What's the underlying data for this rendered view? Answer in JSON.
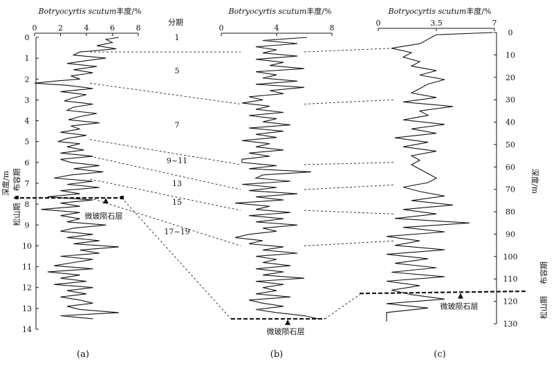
{
  "chart_data": [
    {
      "panel": "(a)",
      "type": "line",
      "title": "Botryocyrtis scutum丰度/%",
      "xlim": [
        0,
        8
      ],
      "xticks": [
        "0",
        "2",
        "4",
        "6",
        "8"
      ],
      "ylabel": "深度/m",
      "ylim": [
        0,
        14
      ],
      "yticks": [
        "0",
        "1",
        "2",
        "3",
        "4",
        "5",
        "6",
        "7",
        "8",
        "9",
        "10",
        "11",
        "12",
        "13",
        "14"
      ],
      "boundary_depth": 7.7,
      "boundary_label": "微玻陨石层",
      "chron_upper": "布容期",
      "chron_lower": "松山期",
      "series": [
        {
          "depth": [
            0,
            0.1,
            0.25,
            0.4,
            0.55,
            0.7,
            0.85,
            1.0,
            1.1,
            1.25,
            1.4,
            1.55,
            1.7,
            1.85,
            2.0,
            2.1,
            2.2,
            2.3,
            2.45,
            2.6,
            2.75,
            2.9,
            3.05,
            3.2,
            3.35,
            3.5,
            3.65,
            3.8,
            3.95,
            4.1,
            4.25,
            4.4,
            4.55,
            4.7,
            4.85,
            5.0,
            5.1,
            5.25,
            5.4,
            5.55,
            5.7,
            5.85,
            6.0,
            6.15,
            6.3,
            6.45,
            6.6,
            6.75,
            6.9,
            7.05,
            7.2,
            7.35,
            7.5,
            7.65,
            7.8,
            7.95,
            8.1,
            8.25,
            8.4,
            8.55,
            8.7,
            8.85,
            9.0,
            9.15,
            9.3,
            9.45,
            9.6,
            9.75,
            9.9,
            10.05,
            10.2,
            10.35,
            10.5,
            10.65,
            10.8,
            10.95,
            11.1,
            11.25,
            11.4,
            11.55,
            11.7,
            11.85,
            12.0,
            12.15,
            12.3,
            12.45,
            12.6,
            12.75,
            12.9,
            13.05,
            13.2,
            13.35,
            13.5
          ],
          "abundance": [
            6.5,
            5.5,
            6.0,
            4.8,
            6.3,
            3.5,
            3.0,
            5.5,
            4.2,
            2.5,
            4.8,
            3.0,
            4.5,
            2.8,
            3.5,
            1.5,
            0,
            2.5,
            4.5,
            2.0,
            4.0,
            3.0,
            2.3,
            4.5,
            3.0,
            2.5,
            4.8,
            3.5,
            2.6,
            5.0,
            2.8,
            3.5,
            2.0,
            4.0,
            2.5,
            1.8,
            3.5,
            2.5,
            3.8,
            2.0,
            4.5,
            2.0,
            2.8,
            5.0,
            3.0,
            5.3,
            2.8,
            1.5,
            4.5,
            2.5,
            5.0,
            2.0,
            3.5,
            1.0,
            4.5,
            2.0,
            3.5,
            0.5,
            3.5,
            2.0,
            3.5,
            2.5,
            5.5,
            3.0,
            2.0,
            4.5,
            2.5,
            5.0,
            3.0,
            6.5,
            3.5,
            5.0,
            2.0,
            4.5,
            3.0,
            1.5,
            4.5,
            1.0,
            3.5,
            2.0,
            4.0,
            1.5,
            4.5,
            2.5,
            4.0,
            2.0,
            3.5,
            4.5,
            2.5,
            3.5,
            6.5,
            2.0,
            4.5
          ]
        }
      ]
    },
    {
      "panel": "(b)",
      "type": "line",
      "title": "Botryocyrtis scutum丰度/%",
      "xlim": [
        0,
        8
      ],
      "xticks": [
        "0",
        "4",
        "8"
      ],
      "ylim": [
        0,
        14
      ],
      "boundary_depth": 13.5,
      "boundary_label": "微玻陨石层",
      "series": [
        {
          "depth": [
            0,
            0.15,
            0.3,
            0.45,
            0.6,
            0.75,
            0.9,
            1.05,
            1.2,
            1.35,
            1.5,
            1.65,
            1.8,
            1.95,
            2.1,
            2.25,
            2.4,
            2.55,
            2.7,
            2.85,
            3.0,
            3.15,
            3.3,
            3.45,
            3.6,
            3.75,
            3.9,
            4.05,
            4.2,
            4.35,
            4.5,
            4.65,
            4.8,
            4.95,
            5.1,
            5.25,
            5.4,
            5.55,
            5.7,
            5.85,
            6.0,
            6.15,
            6.3,
            6.45,
            6.6,
            6.75,
            6.9,
            7.05,
            7.2,
            7.35,
            7.5,
            7.65,
            7.8,
            7.95,
            8.1,
            8.25,
            8.4,
            8.55,
            8.7,
            8.85,
            9.0,
            9.15,
            9.3,
            9.45,
            9.6,
            9.75,
            9.9,
            10.05,
            10.2,
            10.35,
            10.5,
            10.65,
            10.8,
            10.95,
            11.1,
            11.25,
            11.4,
            11.55,
            11.7,
            11.85,
            12.0,
            12.15,
            12.3,
            12.45,
            12.6,
            12.75,
            12.9,
            13.05,
            13.2,
            13.35,
            13.5
          ],
          "abundance": [
            6.2,
            3.0,
            5.5,
            2.5,
            4.0,
            3.0,
            5.5,
            2.5,
            4.5,
            3.5,
            6.0,
            2.5,
            4.0,
            3.0,
            5.5,
            2.5,
            6.0,
            3.5,
            4.5,
            2.0,
            3.0,
            1.5,
            3.5,
            2.5,
            4.5,
            2.0,
            4.0,
            3.0,
            5.0,
            2.0,
            4.5,
            2.5,
            4.0,
            1.5,
            3.5,
            2.5,
            4.5,
            2.0,
            3.5,
            1.5,
            1.5,
            4.0,
            2.0,
            6.5,
            3.0,
            2.5,
            5.0,
            1.5,
            4.0,
            2.0,
            5.5,
            2.5,
            4.5,
            1.0,
            3.5,
            2.5,
            5.0,
            2.0,
            4.5,
            2.5,
            5.5,
            3.0,
            4.0,
            2.0,
            1.0,
            3.0,
            2.0,
            4.5,
            3.0,
            5.5,
            2.5,
            4.0,
            3.0,
            5.0,
            2.5,
            4.5,
            3.0,
            6.0,
            2.5,
            4.5,
            3.0,
            4.0,
            2.5,
            5.0,
            2.0,
            3.0,
            4.5,
            2.5,
            4.0,
            6.0,
            7.0
          ]
        }
      ]
    },
    {
      "panel": "(c)",
      "type": "line",
      "title": "Botryocyrtis scutum丰度/%",
      "xlim": [
        0,
        7
      ],
      "xticks": [
        "0",
        "3.5",
        "7"
      ],
      "ylabel": "深度/m",
      "ylim": [
        0,
        130
      ],
      "yticks": [
        "0",
        "10",
        "20",
        "30",
        "40",
        "50",
        "60",
        "70",
        "80",
        "90",
        "100",
        "110",
        "120",
        "130"
      ],
      "boundary_depth": 116,
      "boundary_label": "微玻陨石层",
      "chron_upper": "布容期",
      "chron_lower": "松山期",
      "series": [
        {
          "depth": [
            0,
            1,
            3,
            5,
            7,
            9,
            11,
            13,
            15,
            17,
            19,
            21,
            23,
            25,
            27,
            29,
            31,
            33,
            35,
            37,
            39,
            41,
            43,
            45,
            47,
            49,
            51,
            53,
            55,
            57,
            59,
            61,
            63,
            65,
            67,
            69,
            71,
            73,
            75,
            77,
            79,
            81,
            83,
            85,
            87,
            89,
            91,
            93,
            95,
            97,
            99,
            101,
            103,
            105,
            107,
            109,
            111,
            113,
            115,
            117,
            119,
            121,
            123,
            125,
            127,
            129
          ],
          "abundance": [
            6.9,
            3.5,
            3.0,
            2.5,
            0.8,
            2.0,
            1.5,
            2.5,
            2.0,
            3.5,
            2.5,
            4.0,
            3.0,
            2.5,
            2.0,
            3.5,
            1.5,
            4.5,
            2.5,
            3.0,
            1.5,
            4.0,
            2.0,
            3.5,
            1.0,
            3.0,
            1.5,
            3.5,
            2.0,
            2.5,
            2.0,
            2.5,
            3.0,
            3.5,
            3.0,
            1.5,
            2.5,
            4.0,
            2.0,
            4.5,
            1.5,
            3.5,
            1.0,
            5.5,
            1.5,
            4.0,
            0.5,
            2.5,
            1.0,
            4.0,
            0.5,
            3.0,
            1.0,
            3.5,
            0.8,
            4.0,
            0.5,
            2.5,
            0.8,
            2.0,
            4.0,
            0.5,
            3.0,
            0.5,
            0.5,
            0.5
          ]
        }
      ]
    }
  ],
  "correlation": {
    "zone_header": "分期",
    "zone_labels": [
      "1",
      "5",
      "7",
      "9~11",
      "13",
      "15",
      "17~19"
    ]
  },
  "panel_labels": [
    "(a)",
    "(b)",
    "(c)"
  ]
}
